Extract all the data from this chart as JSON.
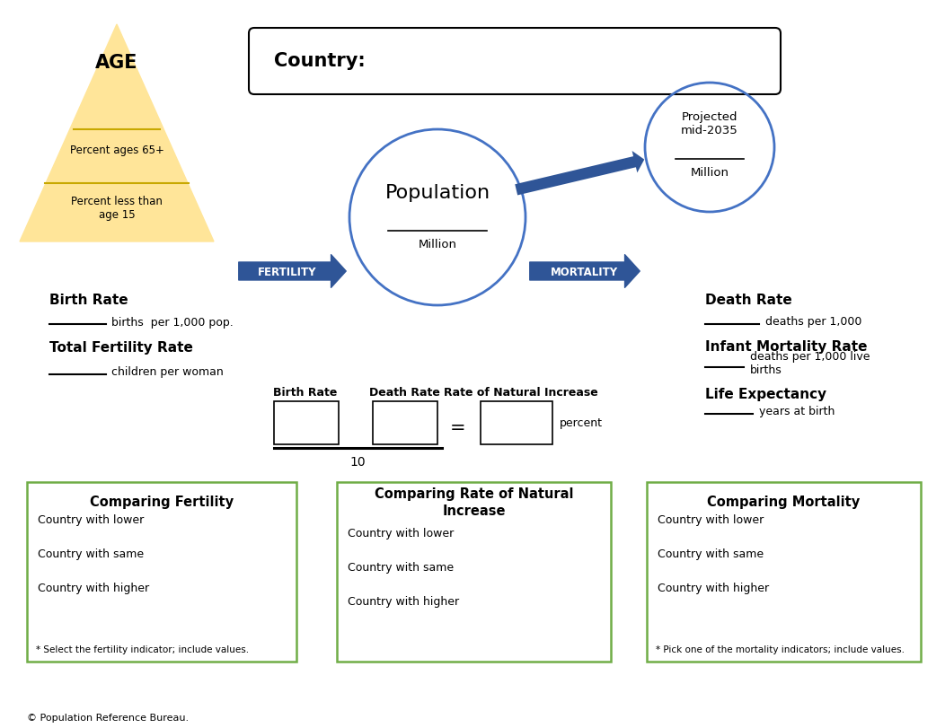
{
  "bg_color": "#ffffff",
  "triangle_color": "#FFE599",
  "circle_color": "#4472C4",
  "arrow_color": "#2F5597",
  "box_border_color": "#70AD47",
  "title_country_box": "Country:",
  "population_label": "Population",
  "million_label": "Million",
  "projected_label": "Projected\nmid-2035",
  "projected_million": "Million",
  "fertility_label": "FERTILITY",
  "mortality_label": "MORTALITY",
  "age_label": "AGE",
  "age_65_label": "Percent ages 65+",
  "age_15_label": "Percent less than\nage 15",
  "birth_rate_label": "Birth Rate",
  "birth_rate_sub": "births  per 1,000 pop.",
  "tfr_label": "Total Fertility Rate",
  "tfr_sub": "children per woman",
  "death_rate_label": "Death Rate",
  "death_rate_sub": "deaths per 1,000",
  "imr_label": "Infant Mortality Rate",
  "imr_sub": "deaths per 1,000 live\nbirths",
  "le_label": "Life Expectancy",
  "le_sub": "years at birth",
  "formula_br": "Birth Rate",
  "formula_dr": "Death Rate",
  "formula_rni": "Rate of Natural Increase",
  "formula_10": "10",
  "formula_percent": "percent",
  "box1_title": "Comparing Fertility",
  "box1_lines": [
    "Country with lower",
    "Country with same",
    "Country with higher",
    "* Select the fertility indicator; include values."
  ],
  "box2_title": "Comparing Rate of Natural\nIncrease",
  "box2_lines": [
    "Country with lower",
    "Country with same",
    "Country with higher"
  ],
  "box3_title": "Comparing Mortality",
  "box3_lines": [
    "Country with lower",
    "Country with same",
    "Country with higher",
    "* Pick one of the mortality indicators; include values."
  ],
  "footer": "© Population Reference Bureau."
}
